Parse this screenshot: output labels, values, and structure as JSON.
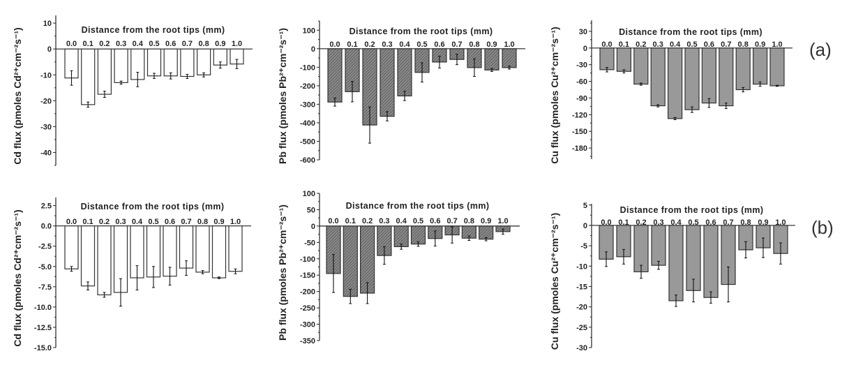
{
  "chart_data": [
    {
      "id": "a-cd",
      "panel": "(a)",
      "type": "bar",
      "title": "Distance from the root tips (mm)",
      "ylabel": "Cd flux (pmoles Cd²⁺cm⁻²s⁻¹)",
      "categories": [
        "0.0",
        "0.1",
        "0.2",
        "0.3",
        "0.4",
        "0.5",
        "0.6",
        "0.7",
        "0.8",
        "0.9",
        "1.0"
      ],
      "values": [
        -11.2,
        -21.5,
        -17.5,
        -13.0,
        -11.8,
        -10.4,
        -10.4,
        -10.6,
        -10.0,
        -6.2,
        -5.8
      ],
      "errors": [
        2.8,
        1.0,
        1.2,
        0.6,
        2.8,
        1.0,
        1.2,
        0.8,
        0.8,
        1.2,
        1.8
      ],
      "yticks": [
        10,
        0,
        -10,
        -20,
        -30,
        -40
      ],
      "ylim": [
        -45,
        13
      ],
      "fill": "#ffffff",
      "hatched": false
    },
    {
      "id": "a-pb",
      "panel": "(a)",
      "type": "bar",
      "title": "Distance from the root tips (mm)",
      "ylabel": "Pb flux (pmoles Pb²⁺cm⁻²s⁻¹)",
      "categories": [
        "0.0",
        "0.1",
        "0.2",
        "0.3",
        "0.4",
        "0.5",
        "0.6",
        "0.7",
        "0.8",
        "0.9",
        "1.0"
      ],
      "values": [
        -288,
        -232,
        -412,
        -365,
        -255,
        -128,
        -72,
        -58,
        -102,
        -115,
        -102
      ],
      "errors": [
        22,
        55,
        98,
        25,
        25,
        52,
        32,
        28,
        48,
        8,
        8
      ],
      "yticks": [
        100,
        0,
        -100,
        -200,
        -300,
        -400,
        -500,
        -600
      ],
      "ylim": [
        -600,
        150
      ],
      "fill": "#7a7a7a",
      "hatched": true
    },
    {
      "id": "a-cu",
      "panel": "(a)",
      "type": "bar",
      "title": "Distance from the root tips (mm)",
      "ylabel": "Cu flux (pmoles Cu²⁺cm⁻²s⁻¹)",
      "categories": [
        "0.0",
        "0.1",
        "0.2",
        "0.3",
        "0.4",
        "0.5",
        "0.6",
        "0.7",
        "0.8",
        "0.9",
        "1.0"
      ],
      "values": [
        -39,
        -42,
        -65,
        -104,
        -127,
        -111,
        -99,
        -104,
        -75,
        -65,
        -68
      ],
      "errors": [
        4,
        3,
        2,
        2,
        2,
        5,
        8,
        5,
        4,
        4,
        1
      ],
      "yticks": [
        30,
        0,
        -30,
        -60,
        -90,
        -120,
        -150,
        -180
      ],
      "ylim": [
        -200,
        50
      ],
      "fill": "#999999",
      "hatched": false
    },
    {
      "id": "b-cd",
      "panel": "(b)",
      "type": "bar",
      "title": "Distance from the root tips (mm)",
      "ylabel": "Cd flux (pmoles Cd²⁺cm⁻²s⁻¹)",
      "categories": [
        "0.0",
        "0.1",
        "0.2",
        "0.3",
        "0.4",
        "0.5",
        "0.6",
        "0.7",
        "0.8",
        "0.9",
        "1.0"
      ],
      "values": [
        -5.3,
        -7.4,
        -8.5,
        -8.2,
        -6.4,
        -6.3,
        -6.2,
        -5.2,
        -5.7,
        -6.4,
        -5.6
      ],
      "errors": [
        0.3,
        0.5,
        0.3,
        1.7,
        1.5,
        1.3,
        1.1,
        0.9,
        0.2,
        0.1,
        0.3
      ],
      "yticks": [
        "2.5",
        "0.0",
        "-2.5",
        "-5.0",
        "-7.5",
        "-10.0",
        "-12.5",
        "-15.0"
      ],
      "ylim": [
        -15,
        3.5
      ],
      "fill": "#ffffff",
      "hatched": false
    },
    {
      "id": "b-pb",
      "panel": "(b)",
      "type": "bar",
      "title": "Distance from the root tips (mm)",
      "ylabel": "Pb flux (pmoles Pb²⁺cm⁻²s⁻¹)",
      "categories": [
        "0.0",
        "0.1",
        "0.2",
        "0.3",
        "0.4",
        "0.5",
        "0.6",
        "0.7",
        "0.8",
        "0.9",
        "1.0"
      ],
      "values": [
        -145,
        -215,
        -205,
        -90,
        -63,
        -55,
        -38,
        -27,
        -37,
        -40,
        -17
      ],
      "errors": [
        58,
        22,
        32,
        27,
        8,
        7,
        23,
        25,
        7,
        5,
        8
      ],
      "yticks": [
        100,
        50,
        0,
        -50,
        -100,
        -150,
        -200,
        -250,
        -300,
        -350
      ],
      "ylim": [
        -350,
        100
      ],
      "fill": "#7a7a7a",
      "hatched": true
    },
    {
      "id": "b-cu",
      "panel": "(b)",
      "type": "bar",
      "title": "Distance from the root tips (mm)",
      "ylabel": "Cu flux (pmoles Cu²⁺cm⁻²s⁻¹)",
      "categories": [
        "0.0",
        "0.1",
        "0.2",
        "0.3",
        "0.4",
        "0.5",
        "0.6",
        "0.7",
        "0.8",
        "0.9",
        "1.0"
      ],
      "values": [
        -8.3,
        -7.7,
        -11.4,
        -9.8,
        -18.5,
        -16.0,
        -17.7,
        -14.5,
        -6.0,
        -5.5,
        -6.9
      ],
      "errors": [
        1.8,
        1.8,
        1.6,
        1.0,
        1.4,
        2.8,
        1.4,
        4.3,
        2.0,
        2.4,
        2.6
      ],
      "yticks": [
        5,
        0,
        -5,
        -10,
        -15,
        -20,
        -25,
        -30
      ],
      "ylim": [
        -30,
        5.3
      ],
      "fill": "#999999",
      "hatched": false
    }
  ],
  "panel_labels": {
    "a": "(a)",
    "b": "(b)"
  }
}
